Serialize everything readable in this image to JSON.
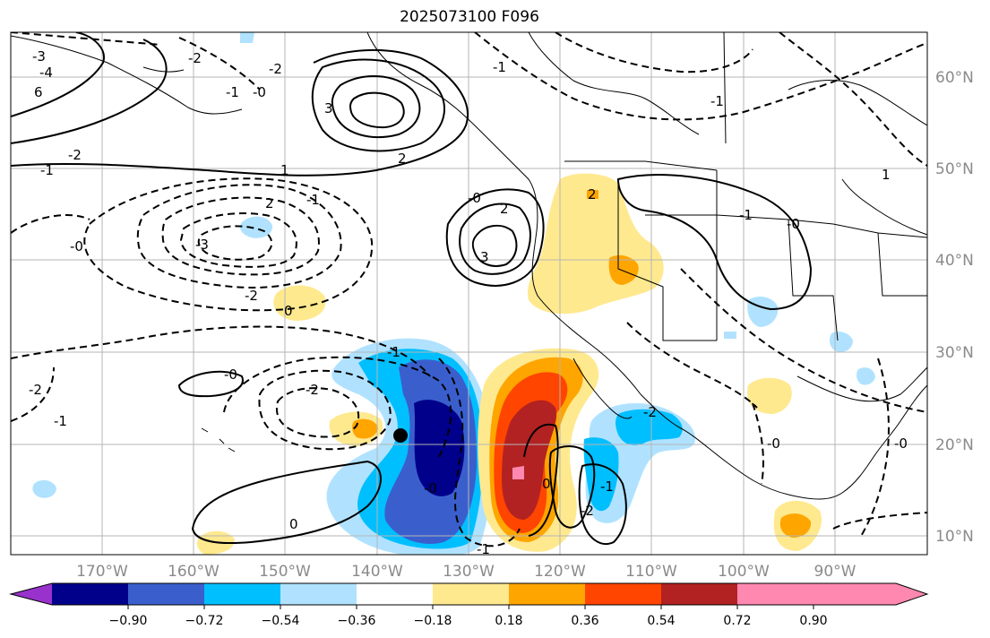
{
  "title": "2025073100 F096",
  "lat_labels": [
    "60°N",
    "50°N",
    "40°N",
    "30°N",
    "20°N",
    "10°N"
  ],
  "lon_labels": [
    "170°W",
    "160°W",
    "150°W",
    "140°W",
    "130°W",
    "120°W",
    "110°W",
    "100°W",
    "90°W"
  ],
  "colorbar": {
    "colors": [
      "#9932cc",
      "#00008b",
      "#3a5fcd",
      "#00bfff",
      "#b0e2ff",
      "#ffffff",
      "#ffe98f",
      "#ffa500",
      "#ff4500",
      "#b22222",
      "#ff88b0"
    ],
    "tick_labels": [
      "−0.90",
      "−0.72",
      "−0.54",
      "−0.36",
      "−0.18",
      "0.18",
      "0.36",
      "0.54",
      "0.72",
      "0.90"
    ]
  },
  "contour_labels": [
    "-3",
    "-4",
    "6",
    "-2",
    "-1",
    "-2",
    "-2",
    "-1",
    "-0",
    "3",
    "2",
    "1",
    "2",
    "-2",
    "-1",
    "-3",
    "-0",
    "-2",
    "-0",
    "0",
    "2",
    "3",
    "-1",
    "-0",
    "-1",
    "-2",
    "-1",
    "0",
    "-2",
    "-2",
    "-1",
    "-1",
    "0",
    "-0",
    "2",
    "-1",
    "-0",
    "1",
    "-1",
    "-0",
    "-0"
  ],
  "storm_marker": "tropical-cyclone-center"
}
